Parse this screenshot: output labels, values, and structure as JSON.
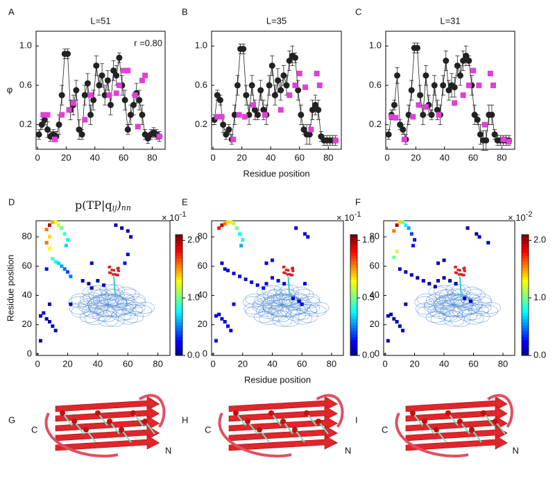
{
  "chart_data": [
    {
      "type": "scatter",
      "label": "A",
      "title": "L=51",
      "annotation": "r =0.80",
      "ylabel": "φ",
      "xlim": [
        -1,
        89
      ],
      "ylim": [
        -0.05,
        1.15
      ],
      "xticks": [
        0,
        20,
        40,
        60,
        80
      ],
      "yticks": [
        0.2,
        0.6,
        {
          "value": 1,
          "label": "1.0"
        }
      ],
      "series": [
        {
          "color": "#222222",
          "connected": true,
          "x": [
            1,
            3,
            5,
            7,
            9,
            11,
            13,
            15,
            17,
            19,
            21,
            23,
            25,
            27,
            29,
            31,
            33,
            35,
            37,
            39,
            41,
            43,
            45,
            47,
            49,
            51,
            53,
            55,
            57,
            59,
            61,
            63,
            65,
            67,
            69,
            71,
            73,
            75,
            77,
            79,
            81,
            83,
            85
          ],
          "values": [
            0.1,
            0.2,
            0.25,
            0.15,
            0.08,
            0.1,
            0.08,
            0.2,
            0.5,
            0.92,
            0.92,
            0.35,
            0.4,
            0.55,
            0.15,
            0.1,
            0.5,
            0.62,
            0.3,
            0.45,
            0.8,
            0.6,
            0.7,
            0.5,
            0.65,
            0.4,
            0.75,
            0.7,
            0.88,
            0.6,
            0.45,
            0.15,
            0.3,
            0.4,
            0.52,
            0.45,
            0.3,
            0.1,
            0.06,
            0.1,
            0.12,
            0.1,
            0.08
          ],
          "errors": [
            0.05,
            0.05,
            0.05,
            0.08,
            0.05,
            0.05,
            0.05,
            0.1,
            0.1,
            0.05,
            0.05,
            0.1,
            0.1,
            0.1,
            0.1,
            0.05,
            0.1,
            0.1,
            0.1,
            0.1,
            0.1,
            0.1,
            0.12,
            0.1,
            0.1,
            0.1,
            0.1,
            0.1,
            0.05,
            0.1,
            0.1,
            0.05,
            0.1,
            0.1,
            0.1,
            0.1,
            0.1,
            0.05,
            0.05,
            0.05,
            0.05,
            0.05,
            0.05
          ]
        },
        {
          "color": "#e040d8",
          "marker": "square",
          "x": [
            4,
            7,
            12,
            17,
            22,
            25,
            33,
            37,
            50,
            55,
            57,
            60,
            63,
            68,
            70,
            73,
            75,
            85
          ],
          "values": [
            0.3,
            0.3,
            0.05,
            0.3,
            0.35,
            0.42,
            0.25,
            0.5,
            0.5,
            0.52,
            0.6,
            0.75,
            0.75,
            0.5,
            0.18,
            0.65,
            0.7,
            0.08
          ]
        }
      ]
    },
    {
      "type": "scatter",
      "label": "B",
      "title": "L=35",
      "xlabel": "Residue position",
      "xlim": [
        -1,
        89
      ],
      "ylim": [
        -0.05,
        1.15
      ],
      "xticks": [
        0,
        20,
        40,
        60,
        80
      ],
      "yticks": [
        0.2,
        0.6,
        {
          "value": 1,
          "label": "1.0"
        }
      ],
      "series": [
        {
          "color": "#222222",
          "connected": true,
          "x": [
            1,
            3,
            5,
            7,
            9,
            11,
            13,
            15,
            17,
            19,
            21,
            23,
            25,
            27,
            29,
            31,
            33,
            35,
            37,
            39,
            41,
            43,
            45,
            47,
            49,
            51,
            53,
            55,
            57,
            59,
            61,
            63,
            65,
            67,
            69,
            71,
            73,
            75,
            77,
            79,
            81,
            83,
            85
          ],
          "values": [
            0.25,
            0.5,
            0.45,
            0.2,
            0.1,
            0.15,
            0.05,
            0.3,
            0.6,
            0.97,
            0.97,
            0.5,
            0.3,
            0.6,
            0.35,
            0.3,
            0.55,
            0.35,
            0.3,
            0.6,
            0.8,
            0.5,
            0.65,
            0.55,
            0.7,
            0.6,
            0.85,
            0.9,
            0.88,
            0.55,
            0.3,
            0.15,
            0.1,
            0.1,
            0.35,
            0.4,
            0.35,
            0.08,
            0.04,
            0.04,
            0.04,
            0.04,
            0.04
          ],
          "errors": [
            0.05,
            0.05,
            0.05,
            0.08,
            0.05,
            0.05,
            0.05,
            0.1,
            0.1,
            0.05,
            0.05,
            0.1,
            0.1,
            0.1,
            0.1,
            0.05,
            0.1,
            0.1,
            0.1,
            0.1,
            0.1,
            0.1,
            0.12,
            0.1,
            0.1,
            0.1,
            0.1,
            0.1,
            0.05,
            0.1,
            0.1,
            0.05,
            0.1,
            0.1,
            0.1,
            0.1,
            0.1,
            0.05,
            0.05,
            0.05,
            0.05,
            0.05,
            0.05
          ]
        },
        {
          "color": "#e040d8",
          "marker": "square",
          "x": [
            3,
            6,
            14,
            18,
            22,
            28,
            36,
            47,
            53,
            57,
            60,
            64,
            68,
            72,
            74,
            85
          ],
          "values": [
            0.28,
            0.28,
            0.05,
            0.3,
            0.28,
            0.4,
            0.3,
            0.35,
            0.5,
            0.6,
            0.72,
            0.58,
            0.15,
            0.72,
            0.6,
            0.04
          ]
        }
      ]
    },
    {
      "type": "scatter",
      "label": "C",
      "title": "L=31",
      "xlim": [
        -1,
        89
      ],
      "ylim": [
        -0.05,
        1.15
      ],
      "xticks": [
        0,
        20,
        40,
        60,
        80
      ],
      "yticks": [
        0.2,
        0.6,
        {
          "value": 1,
          "label": "1.0"
        }
      ],
      "series": [
        {
          "color": "#222222",
          "connected": true,
          "x": [
            1,
            3,
            5,
            7,
            9,
            11,
            13,
            15,
            17,
            19,
            21,
            23,
            25,
            27,
            29,
            31,
            33,
            35,
            37,
            39,
            41,
            43,
            45,
            47,
            49,
            51,
            53,
            55,
            57,
            59,
            61,
            63,
            65,
            67,
            69,
            71,
            73,
            75,
            77,
            79,
            81,
            83,
            85
          ],
          "values": [
            0.1,
            0.3,
            0.4,
            0.7,
            0.2,
            0.15,
            0.05,
            0.3,
            0.55,
            0.98,
            0.98,
            0.5,
            0.3,
            0.7,
            0.4,
            0.3,
            0.6,
            0.35,
            0.3,
            0.6,
            0.85,
            0.55,
            0.6,
            0.58,
            0.8,
            0.7,
            0.85,
            0.9,
            0.85,
            0.6,
            0.3,
            0.25,
            0.1,
            0.04,
            0.04,
            0.3,
            0.3,
            0.1,
            0.04,
            0.04,
            0.04,
            0.04,
            0.04
          ],
          "errors": [
            0.05,
            0.05,
            0.05,
            0.08,
            0.05,
            0.05,
            0.05,
            0.1,
            0.1,
            0.05,
            0.05,
            0.1,
            0.1,
            0.1,
            0.1,
            0.05,
            0.1,
            0.1,
            0.1,
            0.1,
            0.1,
            0.1,
            0.12,
            0.1,
            0.1,
            0.1,
            0.1,
            0.1,
            0.05,
            0.1,
            0.1,
            0.05,
            0.1,
            0.1,
            0.1,
            0.1,
            0.1,
            0.05,
            0.05,
            0.05,
            0.05,
            0.05,
            0.05
          ]
        },
        {
          "color": "#e040d8",
          "marker": "square",
          "x": [
            3,
            6,
            12,
            18,
            22,
            27,
            36,
            47,
            53,
            57,
            60,
            64,
            68,
            72,
            74,
            81,
            85
          ],
          "values": [
            0.28,
            0.27,
            0.05,
            0.28,
            0.4,
            0.38,
            0.3,
            0.42,
            0.5,
            0.6,
            0.75,
            0.6,
            0.2,
            0.72,
            0.6,
            0.05,
            0.03
          ]
        }
      ]
    },
    {
      "type": "heatmap",
      "label": "D",
      "title": [
        "p(TP|q",
        "ij",
        ")",
        "nn"
      ],
      "ylabel": "Residue position",
      "xlim": [
        -1,
        88
      ],
      "ylim": [
        -1,
        91
      ],
      "xticks": [
        0,
        20,
        40,
        60,
        80
      ],
      "yticks": [
        0,
        20,
        40,
        60,
        80
      ],
      "colormap": "jet",
      "clim": [
        0,
        2.1
      ],
      "cticks": [
        {
          "value": 0,
          "label": "0.0"
        },
        {
          "value": 1,
          "label": "1.0"
        },
        {
          "value": 2,
          "label": "2.0"
        }
      ],
      "colorbar_multiplier": "× 10",
      "colorbar_exponent": "-1",
      "x": [
        6,
        8,
        10,
        12,
        14,
        16,
        18,
        20,
        19,
        8,
        6,
        8,
        10,
        12,
        14,
        16,
        18,
        20,
        22,
        6,
        4,
        2,
        6,
        8,
        10,
        12,
        2,
        8,
        22,
        30,
        34,
        36,
        40,
        44,
        36,
        60,
        58,
        52,
        56,
        60,
        62
      ],
      "y": [
        85,
        88,
        90,
        90,
        88,
        86,
        82,
        78,
        74,
        80,
        76,
        72,
        65,
        63,
        62,
        60,
        58,
        56,
        53,
        58,
        28,
        26,
        24,
        22,
        19,
        16,
        9,
        34,
        34,
        50,
        48,
        45,
        50,
        47,
        62,
        68,
        62,
        88,
        86,
        84,
        80
      ],
      "values": [
        1.6,
        2.0,
        1.5,
        1.3,
        1.2,
        1.0,
        0.9,
        0.8,
        0.7,
        1.4,
        1.6,
        1.3,
        0.9,
        0.8,
        0.7,
        0.6,
        0.5,
        0.4,
        0.5,
        0.3,
        0.2,
        0.2,
        0.1,
        0.1,
        0.1,
        0.1,
        0.1,
        0.1,
        0.1,
        0.1,
        0.1,
        0.1,
        0.1,
        0.1,
        0.1,
        0.2,
        0.3,
        0.1,
        0.1,
        0.1,
        0.1
      ]
    },
    {
      "type": "heatmap",
      "label": "E",
      "xlabel": "Residue position",
      "xlim": [
        -1,
        88
      ],
      "ylim": [
        -1,
        91
      ],
      "xticks": [
        0,
        20,
        40,
        60,
        80
      ],
      "yticks": [
        0,
        20,
        40,
        60,
        80
      ],
      "colormap": "jet",
      "clim": [
        0,
        1.05
      ],
      "cticks": [
        {
          "value": 0,
          "label": "0.0"
        },
        0.5,
        {
          "value": 1,
          "label": "1.0"
        }
      ],
      "colorbar_multiplier": "× 10",
      "colorbar_exponent": "-1",
      "x": [
        4,
        6,
        8,
        10,
        12,
        14,
        16,
        18,
        20,
        19,
        6,
        8,
        10,
        14,
        18,
        22,
        26,
        30,
        34,
        36,
        40,
        4,
        2,
        6,
        8,
        10,
        12,
        2,
        14,
        36,
        40,
        44,
        48,
        56,
        62,
        64,
        54,
        58,
        60,
        62
      ],
      "y": [
        86,
        88,
        89,
        90,
        90,
        89,
        86,
        82,
        78,
        74,
        62,
        58,
        57,
        55,
        53,
        51,
        49,
        47,
        45,
        48,
        52,
        27,
        26,
        24,
        22,
        19,
        16,
        9,
        34,
        62,
        64,
        50,
        48,
        86,
        82,
        80,
        38,
        36,
        34,
        48
      ],
      "values": [
        0.9,
        1.0,
        0.8,
        0.7,
        0.6,
        0.6,
        0.5,
        0.4,
        0.4,
        0.3,
        0.1,
        0.1,
        0.1,
        0.1,
        0.1,
        0.1,
        0.1,
        0.1,
        0.1,
        0.1,
        0.1,
        0.1,
        0.1,
        0.1,
        0.1,
        0.1,
        0.1,
        0.1,
        0.1,
        0.1,
        0.1,
        0.1,
        0.1,
        0.1,
        0.1,
        0.1,
        0.1,
        0.1,
        0.1,
        0.1
      ]
    },
    {
      "type": "heatmap",
      "label": "F",
      "xlim": [
        -1,
        88
      ],
      "ylim": [
        -1,
        91
      ],
      "xticks": [
        0,
        20,
        40,
        60,
        80
      ],
      "yticks": [
        0,
        20,
        40,
        60,
        80
      ],
      "colormap": "jet",
      "clim": [
        0,
        2.1
      ],
      "cticks": [
        {
          "value": 0,
          "label": "0.0"
        },
        {
          "value": 1,
          "label": "1.0"
        },
        {
          "value": 2,
          "label": "2.0"
        }
      ],
      "colorbar_multiplier": "× 10",
      "colorbar_exponent": "-2",
      "x": [
        6,
        8,
        10,
        12,
        14,
        16,
        18,
        20,
        19,
        8,
        6,
        10,
        14,
        18,
        22,
        26,
        30,
        34,
        36,
        40,
        4,
        2,
        6,
        8,
        10,
        12,
        2,
        14,
        36,
        40,
        44,
        48,
        56,
        62,
        64,
        70,
        54,
        58
      ],
      "y": [
        84,
        88,
        90,
        90,
        88,
        86,
        82,
        78,
        74,
        70,
        66,
        58,
        56,
        54,
        52,
        50,
        48,
        46,
        50,
        52,
        27,
        26,
        24,
        22,
        19,
        16,
        9,
        34,
        62,
        64,
        50,
        48,
        86,
        82,
        80,
        76,
        38,
        36
      ],
      "values": [
        1.6,
        2.0,
        1.4,
        1.0,
        0.8,
        0.6,
        0.4,
        0.3,
        0.3,
        1.2,
        1.0,
        0.2,
        0.1,
        0.1,
        0.1,
        0.1,
        0.1,
        0.1,
        0.1,
        0.1,
        0.1,
        0.1,
        0.1,
        0.1,
        0.1,
        0.1,
        0.1,
        0.1,
        0.1,
        0.1,
        0.1,
        0.1,
        0.1,
        0.1,
        0.1,
        0.1,
        0.1,
        0.1
      ]
    },
    {
      "type": "structure",
      "label": "G",
      "annotations": [
        "C",
        "N"
      ]
    },
    {
      "type": "structure",
      "label": "H",
      "annotations": [
        "C",
        "N"
      ]
    },
    {
      "type": "structure",
      "label": "I",
      "annotations": [
        "C",
        "N"
      ]
    }
  ]
}
